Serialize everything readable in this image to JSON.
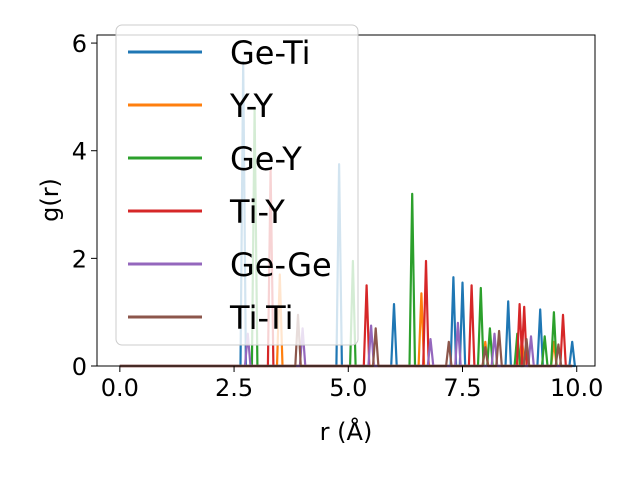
{
  "chart_data": {
    "type": "line",
    "title": "",
    "xlabel": "r (Å)",
    "ylabel": "g(r)",
    "xlim": [
      -0.5,
      10.4
    ],
    "ylim": [
      0,
      6.15
    ],
    "xticks": [
      0.0,
      2.5,
      5.0,
      7.5,
      10.0
    ],
    "xtick_labels": [
      "0.0",
      "2.5",
      "5.0",
      "7.5",
      "10.0"
    ],
    "yticks": [
      0,
      2,
      4,
      6
    ],
    "ytick_labels": [
      "0",
      "2",
      "4",
      "6"
    ],
    "grid": false,
    "legend": "upper-left",
    "series": [
      {
        "name": "Ge-Ti",
        "color": "#1f77b4",
        "peaks": [
          [
            2.7,
            5.65
          ],
          [
            4.8,
            3.75
          ],
          [
            6.0,
            1.15
          ],
          [
            7.3,
            1.65
          ],
          [
            7.5,
            1.55
          ],
          [
            8.5,
            1.2
          ],
          [
            9.2,
            1.05
          ],
          [
            9.9,
            0.45
          ]
        ]
      },
      {
        "name": "Y-Y",
        "color": "#ff7f0e",
        "peaks": [
          [
            3.5,
            1.7
          ],
          [
            6.6,
            1.35
          ],
          [
            8.0,
            0.45
          ],
          [
            8.8,
            0.5
          ],
          [
            9.5,
            0.45
          ]
        ]
      },
      {
        "name": "Ge-Y",
        "color": "#2ca02c",
        "peaks": [
          [
            2.95,
            4.8
          ],
          [
            5.1,
            1.95
          ],
          [
            6.4,
            3.2
          ],
          [
            7.9,
            1.45
          ],
          [
            8.1,
            0.7
          ],
          [
            8.7,
            0.6
          ],
          [
            9.3,
            0.55
          ],
          [
            9.5,
            1.0
          ]
        ]
      },
      {
        "name": "Ti-Y",
        "color": "#d62728",
        "peaks": [
          [
            3.3,
            3.65
          ],
          [
            5.4,
            1.5
          ],
          [
            6.7,
            1.95
          ],
          [
            7.7,
            1.5
          ],
          [
            8.75,
            1.15
          ],
          [
            8.85,
            1.1
          ],
          [
            9.7,
            0.95
          ]
        ]
      },
      {
        "name": "Ge-Ge",
        "color": "#9467bd",
        "peaks": [
          [
            2.8,
            0.6
          ],
          [
            4.0,
            0.7
          ],
          [
            5.5,
            0.75
          ],
          [
            6.8,
            0.5
          ],
          [
            7.4,
            0.8
          ],
          [
            8.2,
            0.6
          ],
          [
            9.0,
            0.55
          ]
        ]
      },
      {
        "name": "Ti-Ti",
        "color": "#8c564b",
        "peaks": [
          [
            3.9,
            0.95
          ],
          [
            5.6,
            0.7
          ],
          [
            7.2,
            0.45
          ],
          [
            8.0,
            0.35
          ],
          [
            8.3,
            0.65
          ],
          [
            8.9,
            0.5
          ],
          [
            9.6,
            0.4
          ]
        ]
      }
    ]
  }
}
